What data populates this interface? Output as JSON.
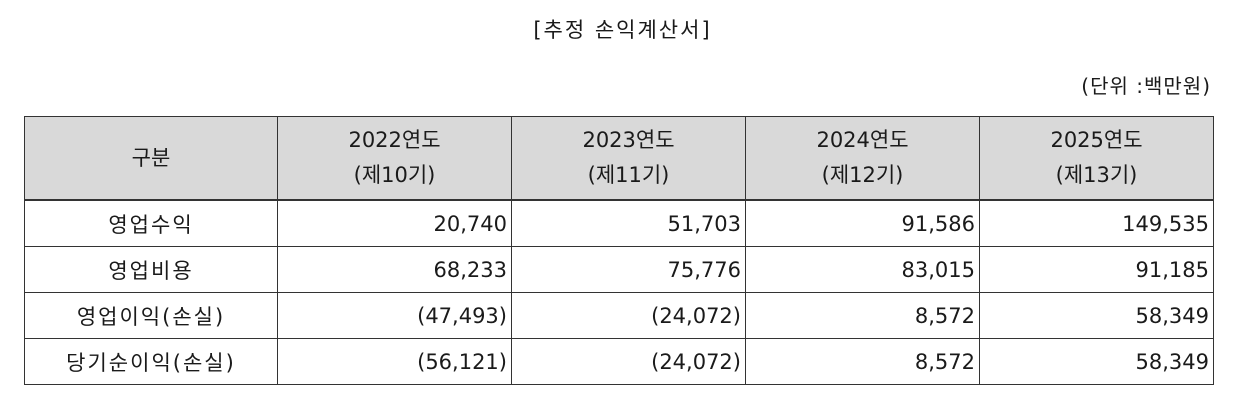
{
  "title": "[추정 손익계산서]",
  "unit": "(단위 :백만원)",
  "table": {
    "corner": "구분",
    "columns": [
      {
        "year": "2022연도",
        "period": "(제10기)"
      },
      {
        "year": "2023연도",
        "period": "(제11기)"
      },
      {
        "year": "2024연도",
        "period": "(제12기)"
      },
      {
        "year": "2025연도",
        "period": "(제13기)"
      }
    ],
    "rows": [
      {
        "label": "영업수익",
        "values": [
          "20,740",
          "51,703",
          "91,586",
          "149,535"
        ]
      },
      {
        "label": "영업비용",
        "values": [
          "68,233",
          "75,776",
          "83,015",
          "91,185"
        ]
      },
      {
        "label": "영업이익(손실)",
        "values": [
          "(47,493)",
          "(24,072)",
          "8,572",
          "58,349"
        ]
      },
      {
        "label": "당기순이익(손실)",
        "values": [
          "(56,121)",
          "(24,072)",
          "8,572",
          "58,349"
        ]
      }
    ]
  }
}
